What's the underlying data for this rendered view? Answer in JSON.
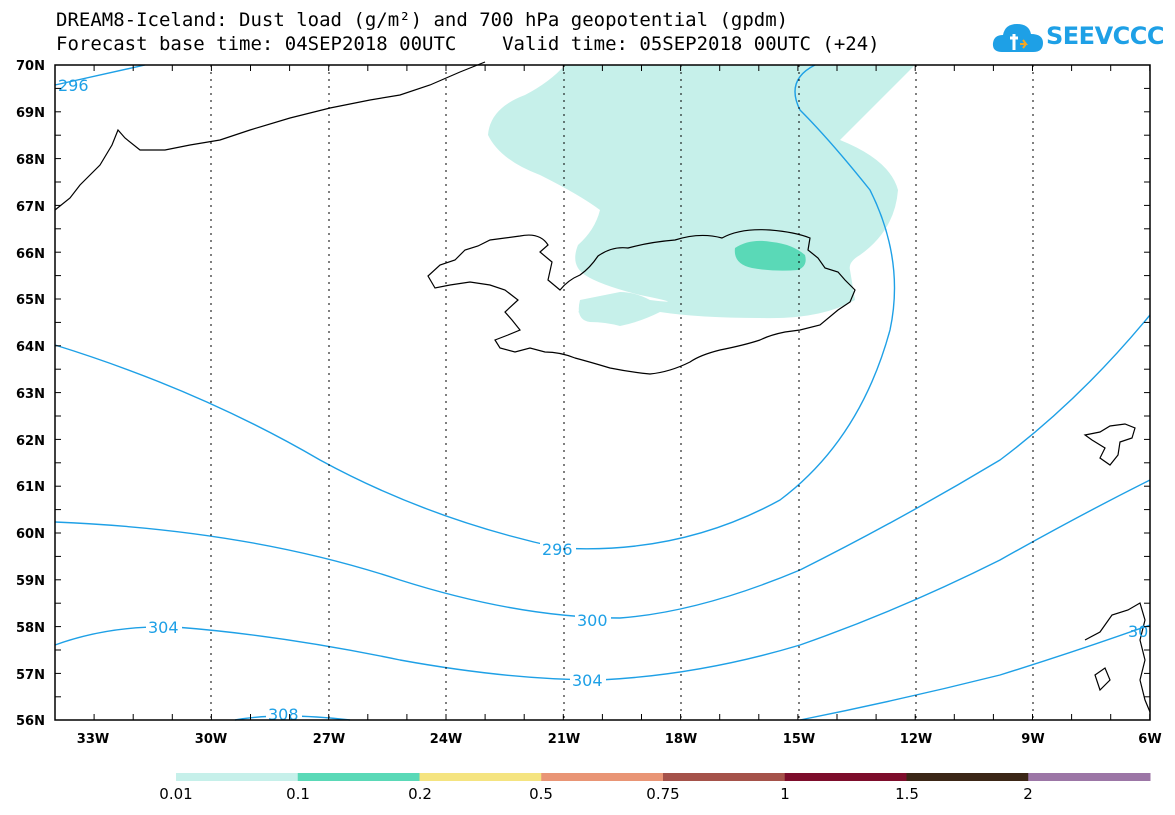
{
  "title_line1": "DREAM8-Iceland: Dust load (g/m²) and 700 hPa geopotential (gpdm)",
  "title_line2": "Forecast base time: 04SEP2018 00UTC    Valid time: 05SEP2018 00UTC (+24)",
  "logo_text": "SEEVCCC",
  "map": {
    "lat_labels": [
      "70N",
      "69N",
      "68N",
      "67N",
      "66N",
      "65N",
      "64N",
      "63N",
      "62N",
      "61N",
      "60N",
      "59N",
      "58N",
      "57N",
      "56N"
    ],
    "lon_labels": [
      "33W",
      "30W",
      "27W",
      "24W",
      "21W",
      "18W",
      "15W",
      "12W",
      "9W",
      "6W"
    ],
    "contour_labels": [
      "296",
      "296",
      "300",
      "304",
      "304",
      "308",
      "30"
    ]
  },
  "colorbar": {
    "colors": [
      "#c6f0ea",
      "#5ad9b7",
      "#f5e480",
      "#e99575",
      "#a5524a",
      "#7d0d2b",
      "#3b2616",
      "#9c76a6"
    ],
    "labels": [
      "0.01",
      "0.1",
      "0.2",
      "0.5",
      "0.75",
      "1",
      "1.5",
      "2"
    ]
  },
  "colors": {
    "contour": "#1ea0e6",
    "coast": "#000000"
  }
}
